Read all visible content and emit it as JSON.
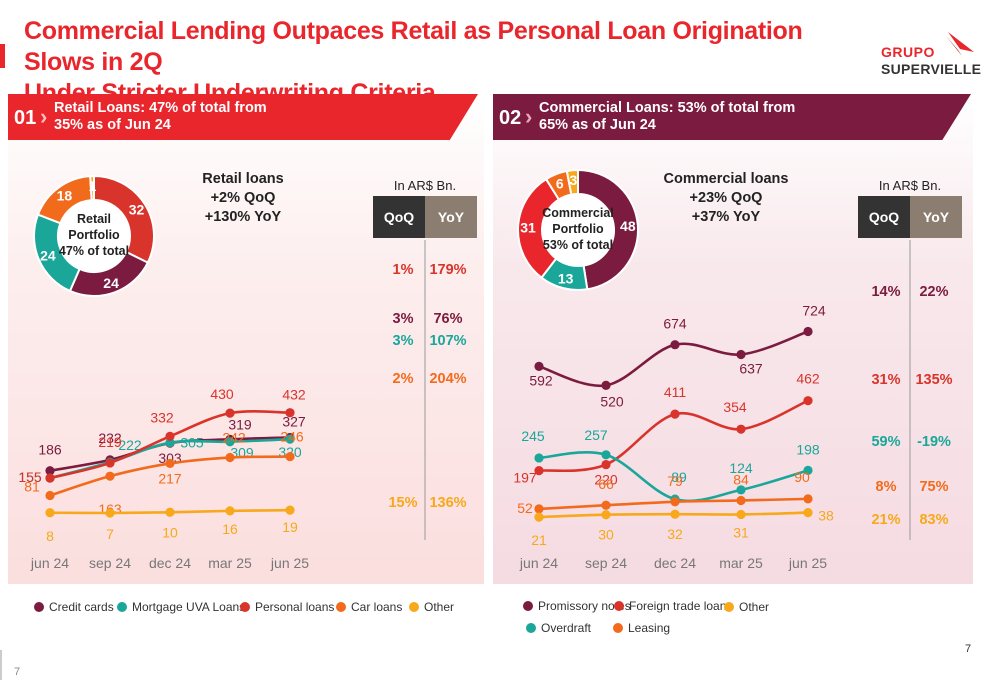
{
  "header": {
    "title_line1": "Commercial Lending Outpaces Retail as Personal Loan Origination Slows in 2Q",
    "title_line2": "Under Stricter Underwriting Criteria",
    "logo_line1": "GRUPO",
    "logo_line2": "SUPERVIELLE"
  },
  "colors": {
    "red": "#e8262c",
    "maroon": "#7b1b3f",
    "teal": "#1aa79a",
    "orange": "#f26b1d",
    "yellow": "#f7a81b",
    "credit_cards": "#7b1b3f",
    "personal": "#d9342b"
  },
  "retail": {
    "section_num": "01",
    "heading_line1": "Retail Loans: 47% of total from",
    "heading_line2": "35%  as of Jun 24",
    "summary_title": "Retail loans",
    "summary_qoq": "+2% QoQ",
    "summary_yoy": "+130% YoY",
    "unit": "In AR$ Bn.",
    "qoq_header": "QoQ",
    "yoy_header": "YoY",
    "donut_center": [
      "Retail",
      "Portfolio",
      "47% of total"
    ],
    "qoq_yoy": [
      {
        "qoq": "1%",
        "yoy": "179%",
        "color": "#d9342b"
      },
      {
        "qoq": "3%",
        "yoy": "76%",
        "color": "#7b1b3f"
      },
      {
        "qoq": "3%",
        "yoy": "107%",
        "color": "#1aa79a"
      },
      {
        "qoq": "2%",
        "yoy": "204%",
        "color": "#f26b1d"
      },
      {
        "qoq": "15%",
        "yoy": "136%",
        "color": "#f7a81b"
      }
    ],
    "legend": [
      "Credit cards",
      "Mortgage UVA Loans",
      "Personal loans",
      "Car loans",
      "Other"
    ]
  },
  "commercial": {
    "section_num": "02",
    "heading_line1": "Commercial Loans: 53% of total from",
    "heading_line2": "65% as of Jun 24",
    "summary_title": "Commercial loans",
    "summary_qoq": "+23% QoQ",
    "summary_yoy": "+37% YoY",
    "unit": "In AR$ Bn.",
    "qoq_header": "QoQ",
    "yoy_header": "YoY",
    "donut_center": [
      "Commercial",
      "Portfolio",
      "53% of total"
    ],
    "qoq_yoy": [
      {
        "qoq": "14%",
        "yoy": "22%",
        "color": "#7b1b3f"
      },
      {
        "qoq": "31%",
        "yoy": "135%",
        "color": "#d9342b"
      },
      {
        "qoq": "59%",
        "yoy": "-19%",
        "color": "#1aa79a"
      },
      {
        "qoq": "8%",
        "yoy": "75%",
        "color": "#f26b1d"
      },
      {
        "qoq": "21%",
        "yoy": "83%",
        "color": "#f7a81b"
      }
    ],
    "legend": [
      "Promissory notes",
      "Foreign trade loans",
      "Other",
      "Overdraft",
      "Leasing"
    ]
  },
  "page_number": "7",
  "page_number_right": "7",
  "chart_data": [
    {
      "type": "pie",
      "labels": [
        "Personal loans",
        "Credit cards",
        "Mortgage UVA Loans",
        "Car loans",
        "Other"
      ],
      "values": [
        32,
        24,
        24,
        18,
        1
      ],
      "colors": [
        "#d9342b",
        "#7b1b3f",
        "#1aa79a",
        "#f26b1d",
        "#f7a81b"
      ]
    },
    {
      "type": "line",
      "categories": [
        "jun 24",
        "sep 24",
        "dec 24",
        "mar 25",
        "jun 25"
      ],
      "series": [
        {
          "name": "Credit cards",
          "color": "#7b1b3f",
          "values": [
            186,
            232,
            303,
            319,
            327
          ]
        },
        {
          "name": "Mortgage UVA Loans",
          "color": "#1aa79a",
          "values": [
            155,
            222,
            305,
            309,
            320
          ]
        },
        {
          "name": "Personal loans",
          "color": "#d9342b",
          "values": [
            155,
            219,
            332,
            430,
            432
          ]
        },
        {
          "name": "Car loans",
          "color": "#f26b1d",
          "values": [
            81,
            163,
            217,
            242,
            246
          ]
        },
        {
          "name": "Other",
          "color": "#f7a81b",
          "values": [
            8,
            7,
            10,
            16,
            19
          ]
        }
      ]
    },
    {
      "type": "pie",
      "labels": [
        "Promissory notes",
        "Overdraft",
        "Foreign trade loans",
        "Leasing",
        "Other"
      ],
      "values": [
        48,
        13,
        31,
        6,
        3
      ],
      "colors": [
        "#7b1b3f",
        "#1aa79a",
        "#e8262c",
        "#f26b1d",
        "#f7a81b"
      ]
    },
    {
      "type": "line",
      "categories": [
        "jun 24",
        "sep 24",
        "dec 24",
        "mar 25",
        "jun 25"
      ],
      "series": [
        {
          "name": "Promissory notes",
          "color": "#7b1b3f",
          "values": [
            592,
            520,
            674,
            637,
            724
          ]
        },
        {
          "name": "Foreign trade loans",
          "color": "#d9342b",
          "values": [
            197,
            220,
            411,
            354,
            462
          ]
        },
        {
          "name": "Overdraft",
          "color": "#1aa79a",
          "values": [
            245,
            257,
            89,
            124,
            198
          ]
        },
        {
          "name": "Leasing",
          "color": "#f26b1d",
          "values": [
            52,
            66,
            79,
            84,
            90
          ]
        },
        {
          "name": "Other",
          "color": "#f7a81b",
          "values": [
            21,
            30,
            32,
            31,
            38
          ]
        }
      ]
    }
  ]
}
